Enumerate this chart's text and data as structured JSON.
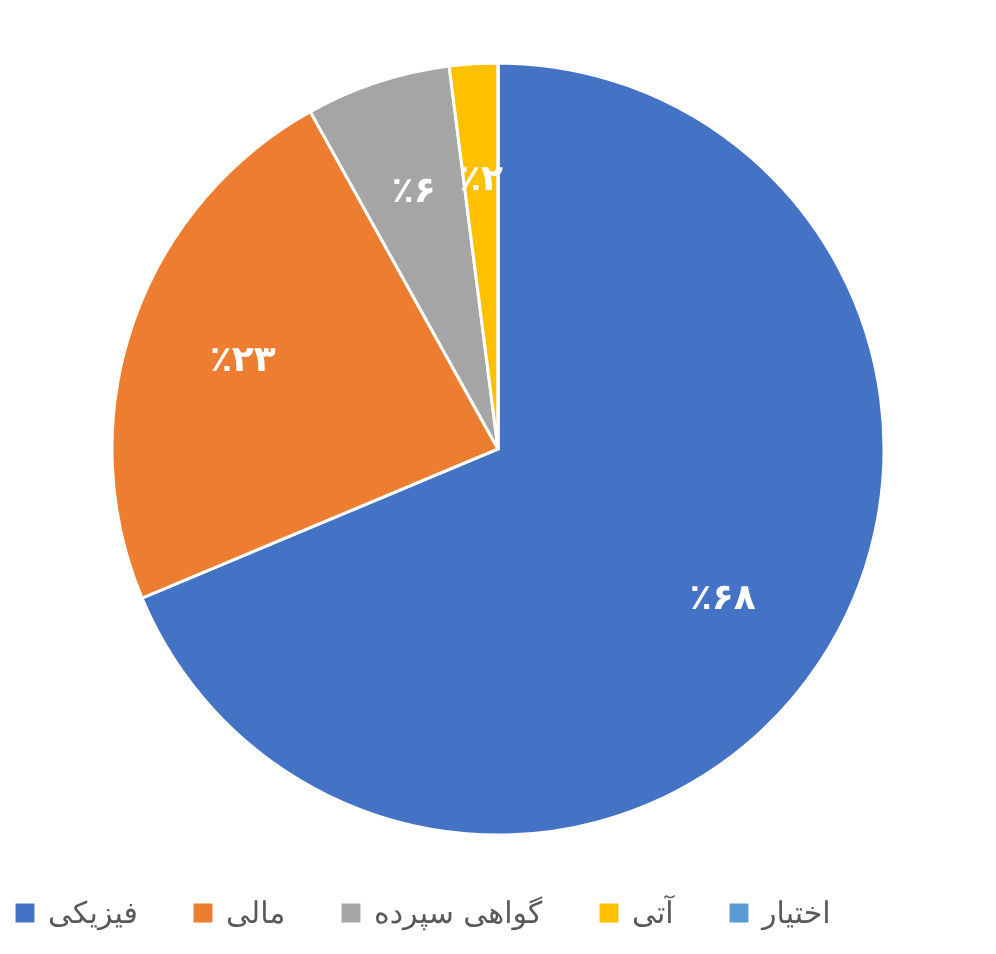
{
  "chart_data": {
    "type": "pie",
    "categories": [
      "فیزیکی",
      "مالی",
      "گواهی سپرده",
      "آتی",
      "اختیار"
    ],
    "values": [
      68,
      23,
      6,
      2,
      0
    ],
    "colors": [
      "#4472c4",
      "#ed7d31",
      "#a5a5a5",
      "#ffc000",
      "#5b9bd5"
    ],
    "value_labels": [
      "٪۶۸",
      "٪۲۳",
      "٪۶",
      "٪۲",
      null
    ],
    "legend": "bottom"
  }
}
